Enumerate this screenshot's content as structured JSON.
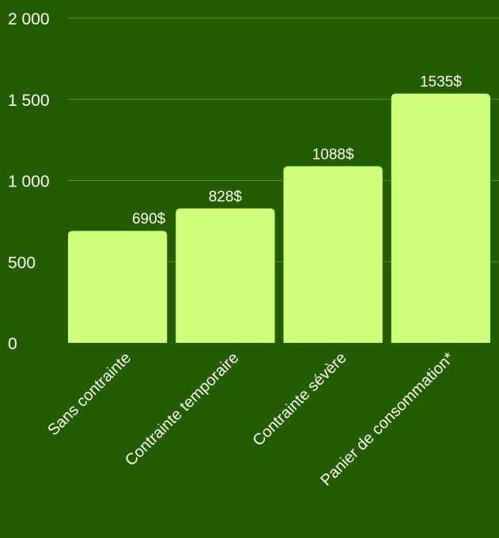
{
  "chart_data": {
    "type": "bar",
    "title": "",
    "xlabel": "",
    "ylabel": "",
    "categories": [
      "Sans contrainte",
      "Contrainte temporaire",
      "Contrainte sévère",
      "Panier de consommation*"
    ],
    "values": [
      690,
      828,
      1088,
      1535
    ],
    "data_labels": [
      "690$",
      "828$",
      "1088$",
      "1535$"
    ],
    "ylim": [
      0,
      2000
    ],
    "yticks": [
      0,
      500,
      1000,
      1500,
      2000
    ],
    "ytick_labels": [
      "0",
      "500",
      "1 000",
      "1 500",
      "2 000"
    ],
    "grid": true,
    "legend": "none",
    "colors": {
      "background": "#245c00",
      "bar": "#cfff7a",
      "text": "#ffffff",
      "grid": "#4f8f2a"
    }
  }
}
